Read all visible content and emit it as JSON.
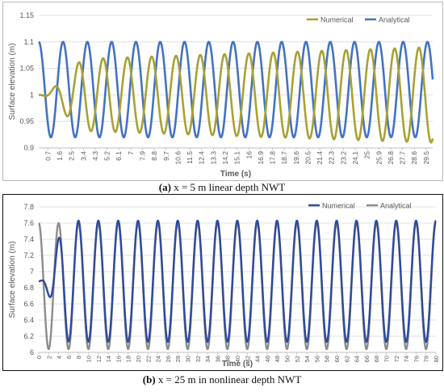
{
  "charts": [
    {
      "id": "a",
      "caption_label": "(a)",
      "caption_text": "x = 5 m linear depth NWT",
      "chart_data": {
        "type": "line",
        "ylabel": "Surface elevation (m)",
        "xlabel": "Time (s)",
        "ylim": [
          0.9,
          1.15
        ],
        "yticks": [
          "0.9",
          "0.95",
          "1",
          "1.05",
          "1.1",
          "1.15"
        ],
        "xticks": [
          "0.7",
          "1.6",
          "2.5",
          "3.4",
          "4.3",
          "5.2",
          "6.1",
          "7",
          "7.9",
          "8.8",
          "9.7",
          "10.6",
          "11.5",
          "12.4",
          "13.3",
          "14.2",
          "15.1",
          "16",
          "16.9",
          "17.8",
          "18.7",
          "19.6",
          "20.5",
          "21.4",
          "22.3",
          "23.2",
          "24.1",
          "25",
          "25.9",
          "26.8",
          "27.7",
          "28.6",
          "29.5"
        ],
        "legend_position": "top-right",
        "grid": "horizontal",
        "series": [
          {
            "name": "Numerical",
            "color": "#a7a234",
            "ramp_period": 3.8,
            "mean": 1.0,
            "amp_start": 0.065,
            "amp_end": 0.09,
            "period": 1.85,
            "phase": 0.35,
            "x_start": 0,
            "x_end": 30
          },
          {
            "name": "Analytical",
            "color": "#4472c4",
            "mean": 1.01,
            "amplitude": 0.09,
            "period": 1.85,
            "phase": 0.0,
            "x_start": 0,
            "x_end": 30
          }
        ]
      }
    },
    {
      "id": "b",
      "caption_label": "(b)",
      "caption_text": "x = 25 m in nonlinear depth NWT",
      "chart_data": {
        "type": "line",
        "ylabel": "Surface elevation (m)",
        "xlabel": "Time (s)",
        "ylim": [
          6,
          7.8
        ],
        "yticks": [
          "6",
          "6.2",
          "6.4",
          "6.6",
          "6.8",
          "7",
          "7.2",
          "7.4",
          "7.6",
          "7.8"
        ],
        "xticks": [
          "0",
          "2",
          "4",
          "6",
          "8",
          "10",
          "12",
          "14",
          "16",
          "18",
          "20",
          "22",
          "24",
          "26",
          "28",
          "30",
          "32",
          "34",
          "36",
          "38",
          "40",
          "42",
          "44",
          "46",
          "48",
          "50",
          "52",
          "54",
          "56",
          "58",
          "60",
          "62",
          "64",
          "66",
          "68",
          "70",
          "72",
          "74",
          "76",
          "78",
          "80"
        ],
        "legend_position": "top-right",
        "grid": "horizontal",
        "series": [
          {
            "name": "Numerical",
            "color": "#2f4a9c",
            "ramp_period": 6.3,
            "mean": 6.88,
            "amplitude": 0.75,
            "period": 4.0,
            "phase": 0.0,
            "x_start": 0,
            "x_end": 80
          },
          {
            "name": "Analytical",
            "color": "#8c8c8c",
            "mean": 6.82,
            "amplitude": 0.78,
            "period": 4.0,
            "phase": 0.0,
            "x_start": 0,
            "x_end": 80
          }
        ]
      }
    }
  ]
}
